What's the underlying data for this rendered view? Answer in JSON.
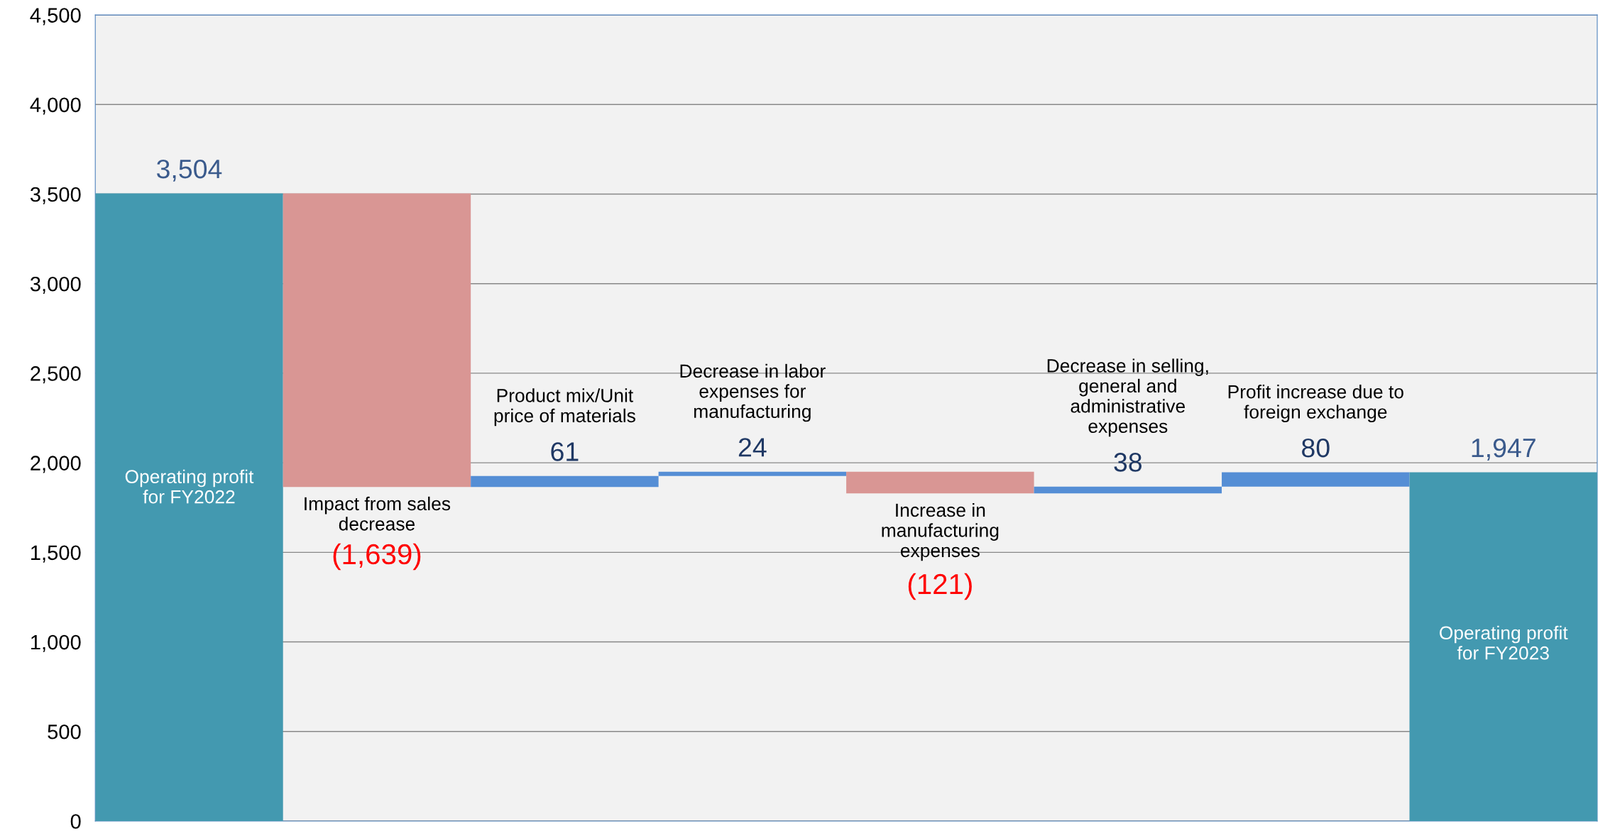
{
  "chart_data": {
    "type": "bar",
    "categories": [
      "Operating profit\nfor FY2022",
      "Impact from sales\ndecrease",
      "Product mix/Unit\nprice of materials",
      "Decrease in labor\nexpenses for\nmanufacturing",
      "Increase in\nmanufacturing\nexpenses",
      "Decrease in selling,\ngeneral and\nadministrative\nexpenses",
      "Profit increase due to\nforeign exchange",
      "Operating profit\nfor FY2023"
    ],
    "values": [
      3504,
      -1639,
      61,
      24,
      -121,
      38,
      80,
      1947
    ],
    "base": [
      0,
      3504,
      1865,
      1926,
      1950,
      1829,
      1867,
      0
    ],
    "colors": [
      "#4399b0",
      "#d99694",
      "#558ed5",
      "#558ed5",
      "#d99694",
      "#558ed5",
      "#558ed5",
      "#4399b0"
    ],
    "value_labels": [
      "3,504",
      "(1,639)",
      "61",
      "24",
      "(121)",
      "38",
      "80",
      "1,947"
    ],
    "ylim": [
      0,
      4500
    ],
    "yticks": [
      {
        "value": 0,
        "label": "0"
      },
      {
        "value": 500,
        "label": "500"
      },
      {
        "value": 1000,
        "label": "1,000"
      },
      {
        "value": 1500,
        "label": "1,500"
      },
      {
        "value": 2000,
        "label": "2,000"
      },
      {
        "value": 2500,
        "label": "2,500"
      },
      {
        "value": 3000,
        "label": "3,000"
      },
      {
        "value": 3500,
        "label": "3,500"
      },
      {
        "value": 4000,
        "label": "4,000"
      },
      {
        "value": 4500,
        "label": "4,500"
      }
    ],
    "grid": "y"
  }
}
